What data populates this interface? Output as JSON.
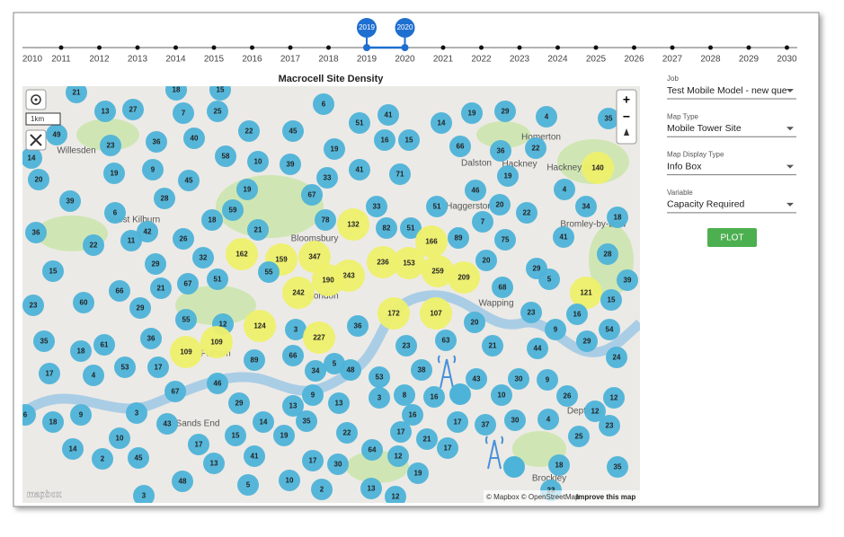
{
  "timeline": {
    "years": [
      "2010",
      "2011",
      "2012",
      "2013",
      "2014",
      "2015",
      "2016",
      "2017",
      "2018",
      "2019",
      "2020",
      "2021",
      "2022",
      "2023",
      "2024",
      "2025",
      "2026",
      "2027",
      "2028",
      "2029",
      "2030"
    ],
    "selected": [
      "2019",
      "2020"
    ]
  },
  "map": {
    "title": "Macrocell Site Density",
    "scale": "1km",
    "zoom_in": "+",
    "zoom_out": "−",
    "attribution": "© Mapbox © OpenStreetMap",
    "improve": "Improve this map",
    "logo": "mapbox",
    "places": [
      "Willesden",
      "West Kilburn",
      "Bloomsbury",
      "London",
      "Dalston",
      "Hackney",
      "Homerton",
      "Hackney Wick",
      "Haggerston",
      "Bromley-by-Bow",
      "Wapping",
      "Sands End",
      "Deptford",
      "Brockley",
      "Fulham"
    ],
    "clusters": [
      21,
      18,
      15,
      13,
      27,
      7,
      25,
      6,
      41,
      51,
      14,
      19,
      29,
      4,
      35,
      49,
      22,
      45,
      16,
      15,
      40,
      36,
      23,
      14,
      58,
      10,
      39,
      19,
      41,
      71,
      66,
      36,
      22,
      140,
      20,
      19,
      9,
      45,
      33,
      19,
      67,
      19,
      46,
      4,
      28,
      39,
      59,
      33,
      51,
      20,
      34,
      6,
      18,
      78,
      132,
      82,
      51,
      21,
      22,
      18,
      36,
      42,
      7,
      11,
      22,
      26,
      166,
      89,
      75,
      41,
      32,
      162,
      159,
      347,
      243,
      236,
      153,
      259,
      209,
      20,
      28,
      29,
      15,
      55,
      51,
      67,
      190,
      242,
      29,
      5,
      121,
      39,
      21,
      66,
      15,
      60,
      23,
      29,
      68,
      55,
      12,
      124,
      172,
      107,
      20,
      23,
      16,
      36,
      3,
      227,
      35,
      61,
      36,
      9,
      54,
      109,
      109,
      18,
      23,
      63,
      21,
      44,
      29,
      89,
      66,
      5,
      48,
      53,
      17,
      34,
      17,
      4,
      38,
      53,
      43,
      30,
      9,
      24,
      46,
      67,
      9,
      16,
      8,
      3,
      10,
      26,
      12,
      13,
      13,
      29,
      9,
      3,
      16,
      6,
      18,
      43,
      14,
      35,
      17,
      37,
      30,
      4,
      12,
      23,
      10,
      22,
      17,
      15,
      19,
      21,
      25,
      14,
      17,
      64,
      17,
      2,
      45,
      41,
      17,
      12,
      30,
      13,
      18,
      35,
      19,
      48,
      10,
      5,
      2,
      13,
      23,
      3,
      12
    ]
  },
  "panel": {
    "fields": [
      {
        "label": "Job",
        "value": "Test Mobile Model - new que"
      },
      {
        "label": "Map Type",
        "value": "Mobile Tower Site"
      },
      {
        "label": "Map Display Type",
        "value": "Info Box"
      },
      {
        "label": "Variable",
        "value": "Capacity Required"
      }
    ],
    "button": "PLOT"
  }
}
